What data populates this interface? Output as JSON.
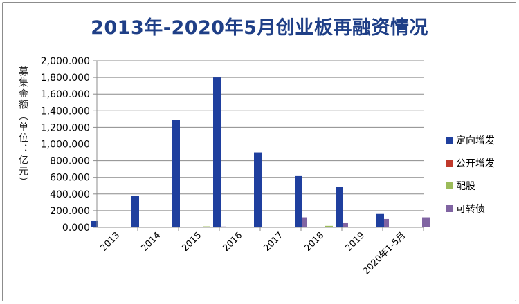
{
  "chart_data": {
    "type": "bar",
    "title": "2013年-2020年5月创业板再融资情况",
    "ylabel": "募集金额（单位：亿元）",
    "categories": [
      "2013",
      "2014",
      "2015",
      "2016",
      "2017",
      "2018",
      "2019",
      "2020年1-5月"
    ],
    "ylim": [
      0,
      2000
    ],
    "yticks": [
      "0.000",
      "200.000",
      "400.000",
      "600.000",
      "800.000",
      "1,000.000",
      "1,200.000",
      "1,400.000",
      "1,600.000",
      "1,800.000",
      "2,000.000"
    ],
    "grid": true,
    "legend_position": "right",
    "series": [
      {
        "name": "定向增发",
        "color": "#1f3f9e",
        "values": [
          75,
          380,
          1290,
          1800,
          900,
          615,
          485,
          160
        ]
      },
      {
        "name": "公开增发",
        "color": "#c0392b",
        "values": [
          0,
          0,
          0,
          0,
          0,
          0,
          0,
          0
        ]
      },
      {
        "name": "配股",
        "color": "#9bbb59",
        "values": [
          0,
          0,
          12,
          5,
          5,
          18,
          5,
          0
        ]
      },
      {
        "name": "可转债",
        "color": "#8064a2",
        "values": [
          0,
          0,
          10,
          0,
          120,
          50,
          100,
          120
        ]
      }
    ]
  }
}
